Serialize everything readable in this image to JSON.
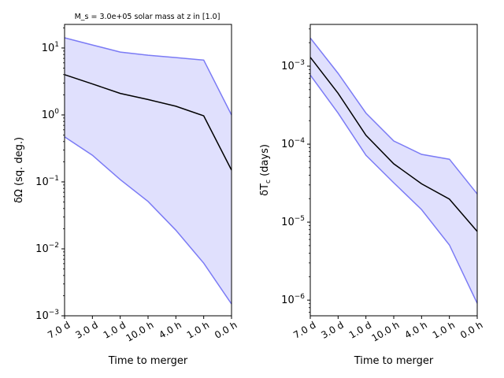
{
  "chart_data": [
    {
      "type": "area",
      "title": "M_s = 3.0e+05 solar mass at z in [1.0]",
      "xlabel": "Time to merger",
      "ylabel": "δΩ (sq. deg.)",
      "yscale": "log",
      "ylim": [
        0.001,
        22.5
      ],
      "yticks": [
        {
          "v": 10,
          "base": "10",
          "exp": "1"
        },
        {
          "v": 1,
          "base": "10",
          "exp": "0"
        },
        {
          "v": 0.1,
          "base": "10",
          "exp": "−1"
        },
        {
          "v": 0.01,
          "base": "10",
          "exp": "−2"
        },
        {
          "v": 0.001,
          "base": "10",
          "exp": "−3"
        }
      ],
      "categories": [
        "7.0 d",
        "3.0 d",
        "1.0 d",
        "10.0 h",
        "4.0 h",
        "1.0 h",
        "0.0 h"
      ],
      "series": [
        {
          "name": "upper",
          "values": [
            14.2,
            11.1,
            8.7,
            7.8,
            7.2,
            6.6,
            1.0
          ]
        },
        {
          "name": "median",
          "values": [
            4.0,
            2.9,
            2.1,
            1.7,
            1.35,
            0.97,
            0.15
          ]
        },
        {
          "name": "lower",
          "values": [
            0.47,
            0.25,
            0.108,
            0.051,
            0.019,
            0.0061,
            0.0015
          ]
        }
      ],
      "grid": false
    },
    {
      "type": "area",
      "title": "",
      "xlabel": "Time to merger",
      "ylabel_main": "δT",
      "ylabel_sub": "c",
      "ylabel_tail": " (days)",
      "yscale": "log",
      "ylim": [
        6.3e-07,
        0.00343
      ],
      "yticks": [
        {
          "v": 0.001,
          "base": "10",
          "exp": "−3"
        },
        {
          "v": 0.0001,
          "base": "10",
          "exp": "−4"
        },
        {
          "v": 1e-05,
          "base": "10",
          "exp": "−5"
        },
        {
          "v": 1e-06,
          "base": "10",
          "exp": "−6"
        }
      ],
      "categories": [
        "7.0 d",
        "3.0 d",
        "1.0 d",
        "10.0 h",
        "4.0 h",
        "1.0 h",
        "0.0 h"
      ],
      "series": [
        {
          "name": "upper",
          "values": [
            0.0023,
            0.00081,
            0.00025,
            0.00011,
            7.4e-05,
            6.4e-05,
            2.3e-05
          ]
        },
        {
          "name": "median",
          "values": [
            0.0013,
            0.00045,
            0.00013,
            5.6e-05,
            3.1e-05,
            1.97e-05,
            7.6e-06
          ]
        },
        {
          "name": "lower",
          "values": [
            0.00077,
            0.00025,
            7.2e-05,
            3.2e-05,
            1.45e-05,
            5.1e-06,
            9.1e-07
          ]
        }
      ],
      "grid": false
    }
  ],
  "colors": {
    "band_fill": "#e0e0fd",
    "band_edge": "#7b7bf5",
    "median": "#000000"
  }
}
